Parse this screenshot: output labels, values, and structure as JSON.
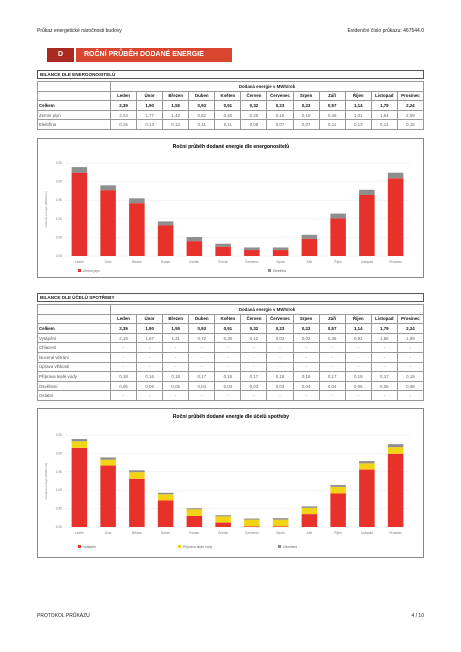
{
  "header": {
    "left": "Průkaz energetické náročnosti budovy",
    "right": "Evidenční číslo průkazu: 467544.0"
  },
  "section": {
    "letter": "D",
    "title": "ROČNÍ PRŮBĚH DODANÉ ENERGIE"
  },
  "table1": {
    "title": "BILANCE DLE ENERGONOSITELŮ",
    "caption": "Dodaná energie v MWh/rok",
    "columns": [
      "Leden",
      "Únor",
      "Březen",
      "Duben",
      "Květen",
      "Červen",
      "Červenec",
      "Srpen",
      "Září",
      "Říjen",
      "Listopad",
      "Prosinec"
    ],
    "rows": [
      {
        "label": "Celkem",
        "cells": [
          "2,39",
          "1,90",
          "1,55",
          "0,93",
          "0,51",
          "0,32",
          "0,23",
          "0,23",
          "0,57",
          "1,14",
          "1,79",
          "2,24"
        ]
      },
      {
        "label": "Zemní plyn",
        "cells": [
          "2,24",
          "1,77",
          "1,42",
          "0,82",
          "0,40",
          "0,25",
          "0,16",
          "0,16",
          "0,46",
          "1,01",
          "1,64",
          "2,09"
        ]
      },
      {
        "label": "Elektřina",
        "cells": [
          "0,15",
          "0,13",
          "0,13",
          "0,11",
          "0,11",
          "0,08",
          "0,07",
          "0,07",
          "0,11",
          "0,13",
          "0,14",
          "0,15"
        ]
      }
    ]
  },
  "table2": {
    "title": "BILANCE DLE ÚČELŮ SPOTŘEBY",
    "caption": "Dodaná energie v MWh/rok",
    "columns": [
      "Leden",
      "Únor",
      "Březen",
      "Duben",
      "Květen",
      "Červen",
      "Červenec",
      "Srpen",
      "Září",
      "Říjen",
      "Listopad",
      "Prosinec"
    ],
    "rows": [
      {
        "label": "Celkem",
        "cells": [
          "2,39",
          "1,90",
          "1,55",
          "0,93",
          "0,51",
          "0,32",
          "0,23",
          "0,23",
          "0,57",
          "1,14",
          "1,79",
          "2,24"
        ]
      },
      {
        "label": "Vytápění",
        "cells": [
          "2,15",
          "1,67",
          "1,31",
          "0,72",
          "0,30",
          "0,12",
          "0,02",
          "0,02",
          "0,35",
          "0,91",
          "1,56",
          "1,99"
        ]
      },
      {
        "label": "Chlazení",
        "cells": [
          "-",
          "-",
          "-",
          "-",
          "-",
          "-",
          "-",
          "-",
          "-",
          "-",
          "-",
          "-"
        ]
      },
      {
        "label": "Nucené větrání",
        "cells": [
          "-",
          "-",
          "-",
          "-",
          "-",
          "-",
          "-",
          "-",
          "-",
          "-",
          "-",
          "-"
        ]
      },
      {
        "label": "Úprava vlhkosti",
        "cells": [
          "-",
          "-",
          "-",
          "-",
          "-",
          "-",
          "-",
          "-",
          "-",
          "-",
          "-",
          "-"
        ]
      },
      {
        "label": "Příprava teplé vody",
        "cells": [
          "0,18",
          "0,16",
          "0,18",
          "0,17",
          "0,18",
          "0,17",
          "0,18",
          "0,18",
          "0,17",
          "0,18",
          "0,17",
          "0,18"
        ]
      },
      {
        "label": "Osvětlení",
        "cells": [
          "0,06",
          "0,06",
          "0,05",
          "0,04",
          "0,03",
          "0,03",
          "0,03",
          "0,04",
          "0,04",
          "0,05",
          "0,06",
          "0,08"
        ]
      },
      {
        "label": "Ostatní",
        "cells": [
          "-",
          "-",
          "-",
          "-",
          "-",
          "-",
          "-",
          "-",
          "-",
          "-",
          "-",
          "-"
        ]
      }
    ]
  },
  "chart_data": [
    {
      "type": "stacked-bar",
      "title": "Roční průběh dodané energie dle energonositelů",
      "y_label": "Dodaná energie [MWh/rok]",
      "categories": [
        "Leden",
        "Únor",
        "Březen",
        "Duben",
        "Květen",
        "Červen",
        "Červenec",
        "Srpen",
        "Září",
        "Říjen",
        "Listopad",
        "Prosinec"
      ],
      "series": [
        {
          "name": "Zemní plyn",
          "color": "#e8312b",
          "values": [
            2.24,
            1.77,
            1.42,
            0.82,
            0.4,
            0.25,
            0.16,
            0.16,
            0.46,
            1.01,
            1.64,
            2.09
          ]
        },
        {
          "name": "Elektřina",
          "color": "#8e8e8e",
          "values": [
            0.15,
            0.13,
            0.13,
            0.11,
            0.11,
            0.08,
            0.07,
            0.07,
            0.11,
            0.13,
            0.14,
            0.15
          ]
        }
      ],
      "ylim": [
        0,
        2.5
      ],
      "yticks": [
        {
          "value": 0,
          "label": "0,00"
        },
        {
          "value": 0.5,
          "label": "0,50"
        },
        {
          "value": 1,
          "label": "1,00"
        },
        {
          "value": 1.5,
          "label": "1,50"
        },
        {
          "value": 2,
          "label": "2,00"
        },
        {
          "value": 2.5,
          "label": "2,50"
        }
      ],
      "grid": true
    },
    {
      "type": "stacked-bar",
      "title": "Roční průběh dodané energie dle účelů spotřeby",
      "y_label": "Dodaná energie [MWh/rok]",
      "categories": [
        "Leden",
        "Únor",
        "Březen",
        "Duben",
        "Květen",
        "Červen",
        "Červenec",
        "Srpen",
        "Září",
        "Říjen",
        "Listopad",
        "Prosinec"
      ],
      "series": [
        {
          "name": "Vytápění",
          "color": "#e8312b",
          "values": [
            2.15,
            1.67,
            1.31,
            0.72,
            0.3,
            0.12,
            0.02,
            0.02,
            0.35,
            0.91,
            1.56,
            1.99
          ]
        },
        {
          "name": "Příprava teplé vody",
          "color": "#f3d316",
          "values": [
            0.18,
            0.16,
            0.18,
            0.17,
            0.18,
            0.17,
            0.18,
            0.18,
            0.17,
            0.18,
            0.17,
            0.18
          ]
        },
        {
          "name": "Osvětlení",
          "color": "#8e8e8e",
          "values": [
            0.06,
            0.06,
            0.05,
            0.04,
            0.03,
            0.03,
            0.03,
            0.04,
            0.04,
            0.05,
            0.06,
            0.08
          ]
        }
      ],
      "ylim": [
        0,
        2.5
      ],
      "yticks": [
        {
          "value": 0,
          "label": "0,00"
        },
        {
          "value": 0.5,
          "label": "0,50"
        },
        {
          "value": 1,
          "label": "1,00"
        },
        {
          "value": 1.5,
          "label": "1,50"
        },
        {
          "value": 2,
          "label": "2,00"
        },
        {
          "value": 2.5,
          "label": "2,50"
        }
      ],
      "grid": true
    }
  ],
  "footer": {
    "left": "PROTOKOL PRŮKAZU",
    "right": "4 / 10"
  }
}
